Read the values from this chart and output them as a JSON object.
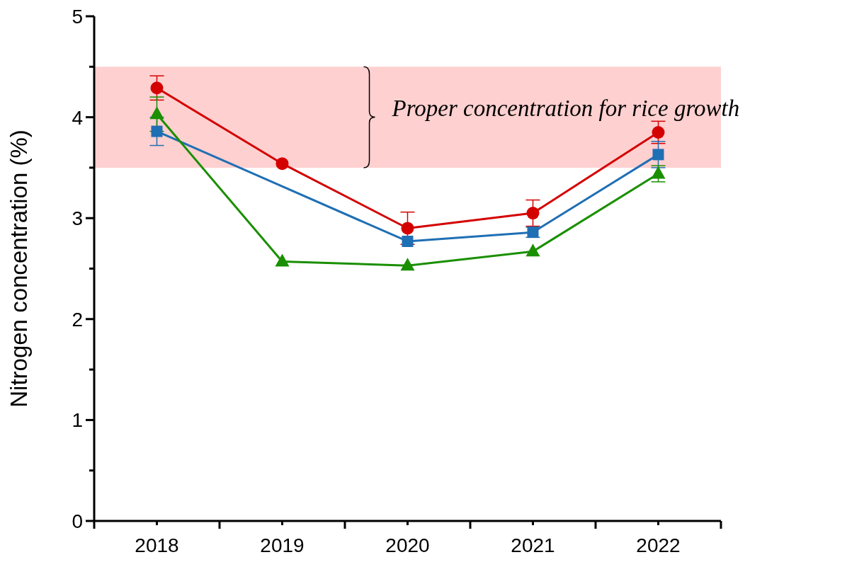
{
  "chart_data": {
    "type": "line",
    "ylabel": "Nitrogen concentration (%)",
    "x": [
      2018,
      2019,
      2020,
      2021,
      2022
    ],
    "xlim": [
      2017.5,
      2022.5
    ],
    "xticks": [
      {
        "value": 2017.5,
        "label": null
      },
      2018,
      {
        "value": 2018.5,
        "label": null
      },
      2019,
      {
        "value": 2019.5,
        "label": null
      },
      2020,
      {
        "value": 2020.5,
        "label": null
      },
      2021,
      {
        "value": 2021.5,
        "label": null
      },
      2022,
      {
        "value": 2022.5,
        "label": null
      }
    ],
    "ylim": [
      0,
      5
    ],
    "yticks": [
      0,
      {
        "value": 0.5,
        "label": null
      },
      1,
      {
        "value": 1.5,
        "label": null
      },
      2,
      {
        "value": 2.5,
        "label": null
      },
      3,
      {
        "value": 3.5,
        "label": null
      },
      4,
      {
        "value": 4.5,
        "label": null
      },
      5
    ],
    "series": [
      {
        "color": "#d40000",
        "marker": "circle",
        "values": [
          4.29,
          3.54,
          2.9,
          3.05,
          3.85
        ],
        "errors": [
          0.12,
          null,
          0.16,
          0.13,
          0.11
        ]
      },
      {
        "color": "#1f6fb4",
        "marker": "square",
        "values": [
          3.86,
          null,
          2.77,
          2.86,
          3.63
        ],
        "errors": [
          0.14,
          null,
          null,
          0.05,
          0.13
        ]
      },
      {
        "color": "#1a8f00",
        "marker": "triangle",
        "values": [
          4.03,
          2.57,
          2.53,
          2.67,
          3.44
        ],
        "errors": [
          0.17,
          null,
          null,
          null,
          0.08
        ]
      }
    ],
    "bands": [
      {
        "axis": "y",
        "from": 3.5,
        "to": 4.5,
        "label": "Proper concentration for rice growth",
        "color": "#ffd0d0"
      }
    ],
    "grid": false,
    "legend": false
  }
}
